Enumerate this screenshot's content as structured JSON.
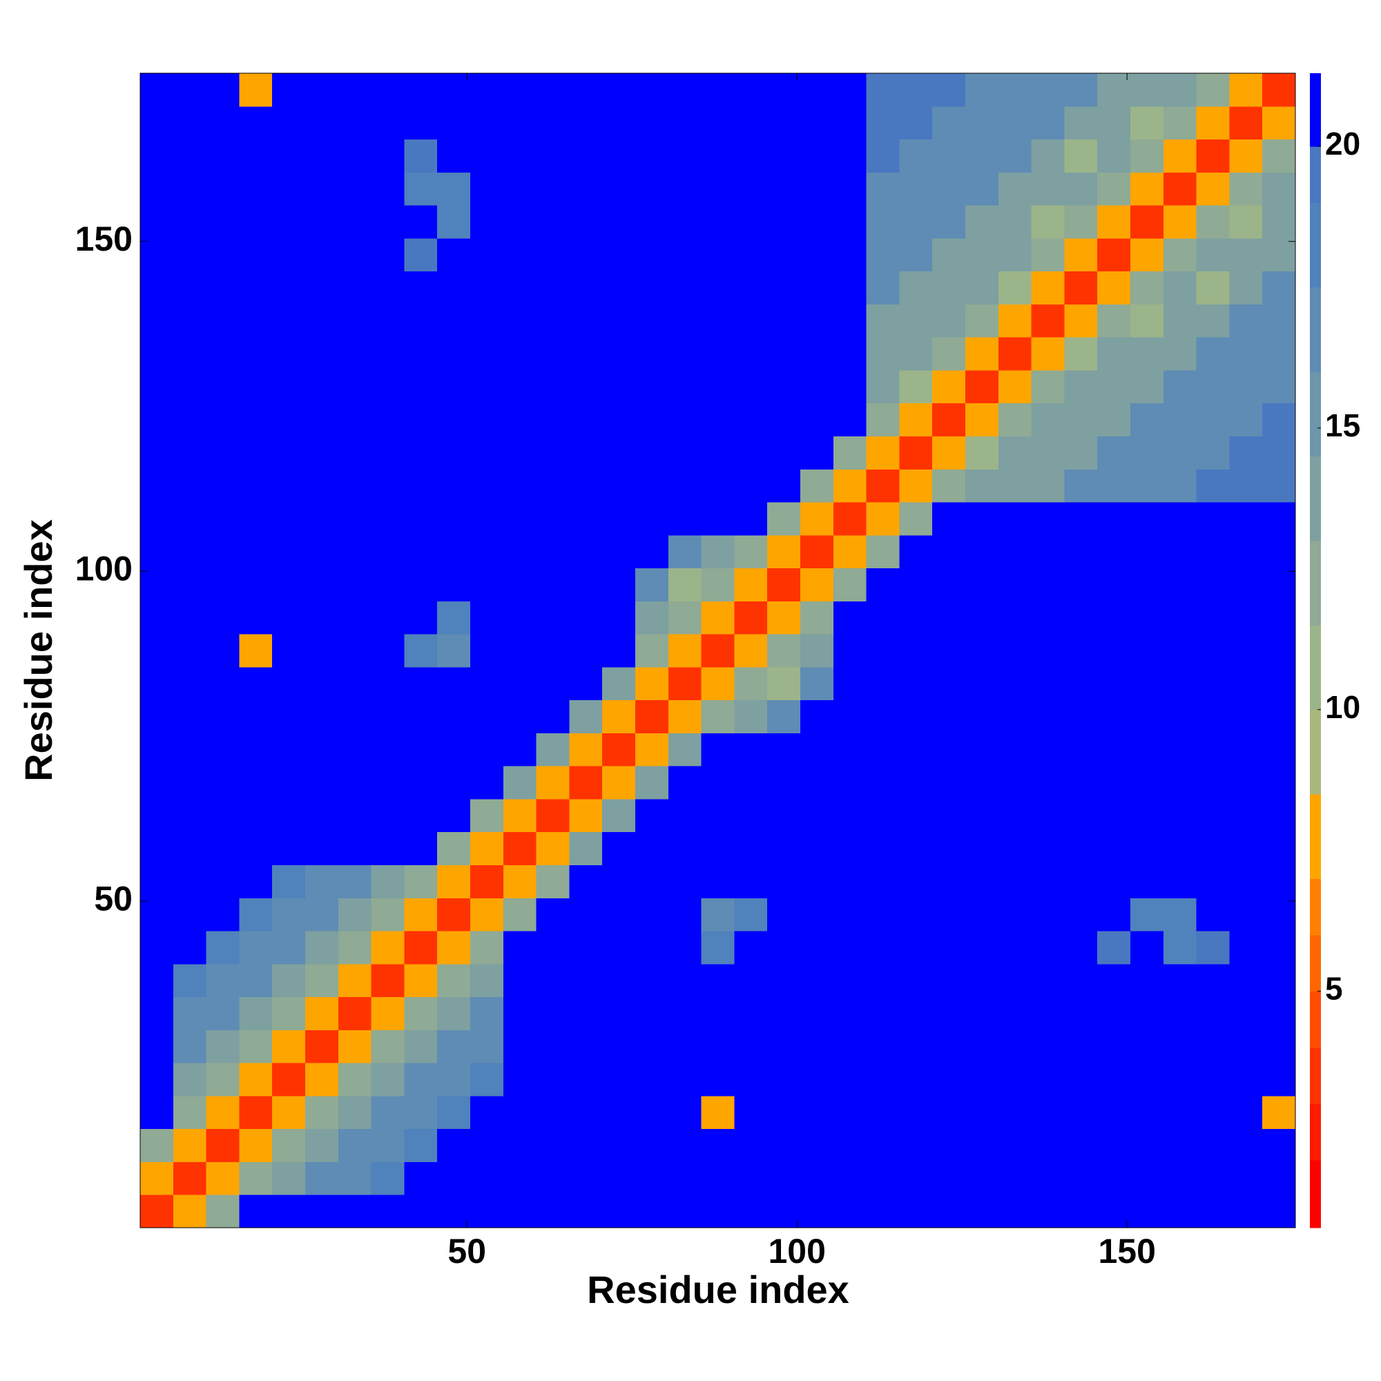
{
  "chart_data": {
    "type": "heatmap",
    "x_label": "Residue index",
    "y_label": "Residue index",
    "xlim": [
      0.5,
      175.5
    ],
    "ylim": [
      0.5,
      175.5
    ],
    "xticks": [
      50,
      100,
      150
    ],
    "yticks": [
      50,
      100,
      150
    ],
    "colorbar": {
      "lim": [
        0.8,
        21.3
      ],
      "ticks": [
        5,
        10,
        15,
        20
      ],
      "levels": [
        0.8,
        2,
        3,
        4,
        5,
        6,
        7,
        8.5,
        10,
        11.5,
        13,
        14.5,
        16,
        17.5,
        19,
        20,
        21.3
      ],
      "colors": [
        "#ff0000",
        "#ff1a00",
        "#ff3300",
        "#ff4d00",
        "#ff6600",
        "#ff8000",
        "#ffa500",
        "#a8b87c",
        "#9cb48a",
        "#8faa95",
        "#7ea0a0",
        "#6e96aa",
        "#5f8cb4",
        "#5082bc",
        "#4a78c0",
        "#0000ff"
      ]
    },
    "z": [
      [
        3,
        8,
        12,
        21,
        21,
        21,
        21,
        21,
        21,
        21,
        21,
        21,
        21,
        21,
        21,
        21,
        21,
        21,
        21,
        21,
        21,
        21,
        21,
        21,
        21,
        21,
        21,
        21,
        21,
        21,
        21,
        21,
        21,
        21,
        21
      ],
      [
        8,
        3,
        8,
        12,
        14,
        16,
        16,
        18,
        21,
        21,
        21,
        21,
        21,
        21,
        21,
        21,
        21,
        21,
        21,
        21,
        21,
        21,
        21,
        21,
        21,
        21,
        21,
        21,
        21,
        21,
        21,
        21,
        21,
        21,
        21
      ],
      [
        12,
        8,
        3,
        8,
        12,
        14,
        16,
        16,
        18,
        21,
        21,
        21,
        21,
        21,
        21,
        21,
        21,
        21,
        21,
        21,
        21,
        21,
        21,
        21,
        21,
        21,
        21,
        21,
        21,
        21,
        21,
        21,
        21,
        21,
        21
      ],
      [
        21,
        12,
        8,
        3,
        8,
        12,
        14,
        16,
        16,
        18,
        21,
        21,
        21,
        21,
        21,
        21,
        21,
        7,
        21,
        21,
        21,
        21,
        21,
        21,
        21,
        21,
        21,
        21,
        21,
        21,
        21,
        21,
        21,
        21,
        7
      ],
      [
        21,
        14,
        12,
        8,
        3,
        8,
        12,
        14,
        16,
        16,
        18,
        21,
        21,
        21,
        21,
        21,
        21,
        21,
        21,
        21,
        21,
        21,
        21,
        21,
        21,
        21,
        21,
        21,
        21,
        21,
        21,
        21,
        21,
        21,
        21
      ],
      [
        21,
        16,
        14,
        12,
        8,
        3,
        8,
        12,
        14,
        16,
        16,
        21,
        21,
        21,
        21,
        21,
        21,
        21,
        21,
        21,
        21,
        21,
        21,
        21,
        21,
        21,
        21,
        21,
        21,
        21,
        21,
        21,
        21,
        21,
        21
      ],
      [
        21,
        16,
        16,
        14,
        12,
        8,
        3,
        8,
        12,
        14,
        16,
        21,
        21,
        21,
        21,
        21,
        21,
        21,
        21,
        21,
        21,
        21,
        21,
        21,
        21,
        21,
        21,
        21,
        21,
        21,
        21,
        21,
        21,
        21,
        21
      ],
      [
        21,
        18,
        16,
        16,
        14,
        12,
        8,
        3,
        8,
        12,
        14,
        21,
        21,
        21,
        21,
        21,
        21,
        21,
        21,
        21,
        21,
        21,
        21,
        21,
        21,
        21,
        21,
        21,
        21,
        21,
        21,
        21,
        21,
        21,
        21
      ],
      [
        21,
        21,
        18,
        16,
        16,
        14,
        12,
        8,
        3,
        8,
        12,
        21,
        21,
        21,
        21,
        21,
        21,
        18,
        21,
        21,
        21,
        21,
        21,
        21,
        21,
        21,
        21,
        21,
        21,
        19,
        21,
        18,
        19,
        21,
        21
      ],
      [
        21,
        21,
        21,
        18,
        16,
        16,
        14,
        12,
        8,
        3,
        8,
        12,
        21,
        21,
        21,
        21,
        21,
        17,
        18,
        21,
        21,
        21,
        21,
        21,
        21,
        21,
        21,
        21,
        21,
        21,
        18,
        18,
        21,
        21,
        21
      ],
      [
        21,
        21,
        21,
        21,
        18,
        16,
        16,
        14,
        12,
        8,
        3,
        8,
        12,
        21,
        21,
        21,
        21,
        21,
        21,
        21,
        21,
        21,
        21,
        21,
        21,
        21,
        21,
        21,
        21,
        21,
        21,
        21,
        21,
        21,
        21
      ],
      [
        21,
        21,
        21,
        21,
        21,
        21,
        21,
        21,
        21,
        12,
        8,
        3,
        8,
        14,
        21,
        21,
        21,
        21,
        21,
        21,
        21,
        21,
        21,
        21,
        21,
        21,
        21,
        21,
        21,
        21,
        21,
        21,
        21,
        21,
        21
      ],
      [
        21,
        21,
        21,
        21,
        21,
        21,
        21,
        21,
        21,
        21,
        12,
        8,
        3,
        8,
        14,
        21,
        21,
        21,
        21,
        21,
        21,
        21,
        21,
        21,
        21,
        21,
        21,
        21,
        21,
        21,
        21,
        21,
        21,
        21,
        21
      ],
      [
        21,
        21,
        21,
        21,
        21,
        21,
        21,
        21,
        21,
        21,
        21,
        14,
        8,
        3,
        8,
        14,
        21,
        21,
        21,
        21,
        21,
        21,
        21,
        21,
        21,
        21,
        21,
        21,
        21,
        21,
        21,
        21,
        21,
        21,
        21
      ],
      [
        21,
        21,
        21,
        21,
        21,
        21,
        21,
        21,
        21,
        21,
        21,
        21,
        14,
        8,
        3,
        8,
        14,
        21,
        21,
        21,
        21,
        21,
        21,
        21,
        21,
        21,
        21,
        21,
        21,
        21,
        21,
        21,
        21,
        21,
        21
      ],
      [
        21,
        21,
        21,
        21,
        21,
        21,
        21,
        21,
        21,
        21,
        21,
        21,
        21,
        14,
        8,
        3,
        8,
        12,
        14,
        17,
        21,
        21,
        21,
        21,
        21,
        21,
        21,
        21,
        21,
        21,
        21,
        21,
        21,
        21,
        21
      ],
      [
        21,
        21,
        21,
        21,
        21,
        21,
        21,
        21,
        21,
        21,
        21,
        21,
        21,
        21,
        14,
        8,
        3,
        8,
        12,
        10,
        17,
        21,
        21,
        21,
        21,
        21,
        21,
        21,
        21,
        21,
        21,
        21,
        21,
        21,
        21
      ],
      [
        21,
        21,
        21,
        7,
        21,
        21,
        21,
        21,
        18,
        17,
        21,
        21,
        21,
        21,
        21,
        12,
        8,
        3,
        8,
        12,
        14,
        21,
        21,
        21,
        21,
        21,
        21,
        21,
        21,
        21,
        21,
        21,
        21,
        21,
        21
      ],
      [
        21,
        21,
        21,
        21,
        21,
        21,
        21,
        21,
        21,
        18,
        21,
        21,
        21,
        21,
        21,
        14,
        12,
        8,
        3,
        8,
        12,
        21,
        21,
        21,
        21,
        21,
        21,
        21,
        21,
        21,
        21,
        21,
        21,
        21,
        21
      ],
      [
        21,
        21,
        21,
        21,
        21,
        21,
        21,
        21,
        21,
        21,
        21,
        21,
        21,
        21,
        21,
        17,
        10,
        12,
        8,
        3,
        8,
        12,
        21,
        21,
        21,
        21,
        21,
        21,
        21,
        21,
        21,
        21,
        21,
        21,
        21
      ],
      [
        21,
        21,
        21,
        21,
        21,
        21,
        21,
        21,
        21,
        21,
        21,
        21,
        21,
        21,
        21,
        21,
        17,
        14,
        12,
        8,
        3,
        8,
        12,
        21,
        21,
        21,
        21,
        21,
        21,
        21,
        21,
        21,
        21,
        21,
        21
      ],
      [
        21,
        21,
        21,
        21,
        21,
        21,
        21,
        21,
        21,
        21,
        21,
        21,
        21,
        21,
        21,
        21,
        21,
        21,
        21,
        12,
        8,
        3,
        8,
        12,
        21,
        21,
        21,
        21,
        21,
        21,
        21,
        21,
        21,
        21,
        21
      ],
      [
        21,
        21,
        21,
        21,
        21,
        21,
        21,
        21,
        21,
        21,
        21,
        21,
        21,
        21,
        21,
        21,
        21,
        21,
        21,
        21,
        12,
        8,
        3,
        8,
        12,
        13,
        13,
        13,
        16,
        16,
        16,
        16,
        19,
        19,
        19
      ],
      [
        21,
        21,
        21,
        21,
        21,
        21,
        21,
        21,
        21,
        21,
        21,
        21,
        21,
        21,
        21,
        21,
        21,
        21,
        21,
        21,
        21,
        12,
        8,
        3,
        8,
        10,
        13,
        13,
        13,
        16,
        16,
        16,
        16,
        19,
        19
      ],
      [
        21,
        21,
        21,
        21,
        21,
        21,
        21,
        21,
        21,
        21,
        21,
        21,
        21,
        21,
        21,
        21,
        21,
        21,
        21,
        21,
        21,
        21,
        12,
        8,
        3,
        8,
        12,
        13,
        13,
        13,
        16,
        16,
        16,
        16,
        19
      ],
      [
        21,
        21,
        21,
        21,
        21,
        21,
        21,
        21,
        21,
        21,
        21,
        21,
        21,
        21,
        21,
        21,
        21,
        21,
        21,
        21,
        21,
        21,
        13,
        10,
        8,
        3,
        8,
        12,
        13,
        13,
        13,
        16,
        16,
        16,
        16
      ],
      [
        21,
        21,
        21,
        21,
        21,
        21,
        21,
        21,
        21,
        21,
        21,
        21,
        21,
        21,
        21,
        21,
        21,
        21,
        21,
        21,
        21,
        21,
        13,
        13,
        12,
        8,
        3,
        8,
        10,
        13,
        13,
        13,
        16,
        16,
        16
      ],
      [
        21,
        21,
        21,
        21,
        21,
        21,
        21,
        21,
        21,
        21,
        21,
        21,
        21,
        21,
        21,
        21,
        21,
        21,
        21,
        21,
        21,
        21,
        13,
        13,
        13,
        12,
        8,
        3,
        8,
        12,
        10,
        13,
        13,
        16,
        16
      ],
      [
        21,
        21,
        21,
        21,
        21,
        21,
        21,
        21,
        21,
        21,
        21,
        21,
        21,
        21,
        21,
        21,
        21,
        21,
        21,
        21,
        21,
        21,
        16,
        13,
        13,
        13,
        10,
        8,
        3,
        8,
        12,
        13,
        10,
        13,
        16
      ],
      [
        21,
        21,
        21,
        21,
        21,
        21,
        21,
        21,
        19,
        21,
        21,
        21,
        21,
        21,
        21,
        21,
        21,
        21,
        21,
        21,
        21,
        21,
        16,
        16,
        13,
        13,
        13,
        12,
        8,
        3,
        8,
        12,
        13,
        13,
        13
      ],
      [
        21,
        21,
        21,
        21,
        21,
        21,
        21,
        21,
        21,
        18,
        21,
        21,
        21,
        21,
        21,
        21,
        21,
        21,
        21,
        21,
        21,
        21,
        16,
        16,
        16,
        13,
        13,
        10,
        12,
        8,
        3,
        8,
        12,
        10,
        13
      ],
      [
        21,
        21,
        21,
        21,
        21,
        21,
        21,
        21,
        18,
        18,
        21,
        21,
        21,
        21,
        21,
        21,
        21,
        21,
        21,
        21,
        21,
        21,
        16,
        16,
        16,
        16,
        13,
        13,
        13,
        12,
        8,
        3,
        8,
        12,
        13
      ],
      [
        21,
        21,
        21,
        21,
        21,
        21,
        21,
        21,
        19,
        21,
        21,
        21,
        21,
        21,
        21,
        21,
        21,
        21,
        21,
        21,
        21,
        21,
        19,
        16,
        16,
        16,
        16,
        13,
        10,
        13,
        12,
        8,
        3,
        8,
        12
      ],
      [
        21,
        21,
        21,
        21,
        21,
        21,
        21,
        21,
        21,
        21,
        21,
        21,
        21,
        21,
        21,
        21,
        21,
        21,
        21,
        21,
        21,
        21,
        19,
        19,
        16,
        16,
        16,
        16,
        13,
        13,
        10,
        12,
        8,
        3,
        8
      ],
      [
        21,
        21,
        21,
        7,
        21,
        21,
        21,
        21,
        21,
        21,
        21,
        21,
        21,
        21,
        21,
        21,
        21,
        21,
        21,
        21,
        21,
        21,
        19,
        19,
        19,
        16,
        16,
        16,
        16,
        13,
        13,
        13,
        12,
        8,
        3
      ]
    ]
  }
}
